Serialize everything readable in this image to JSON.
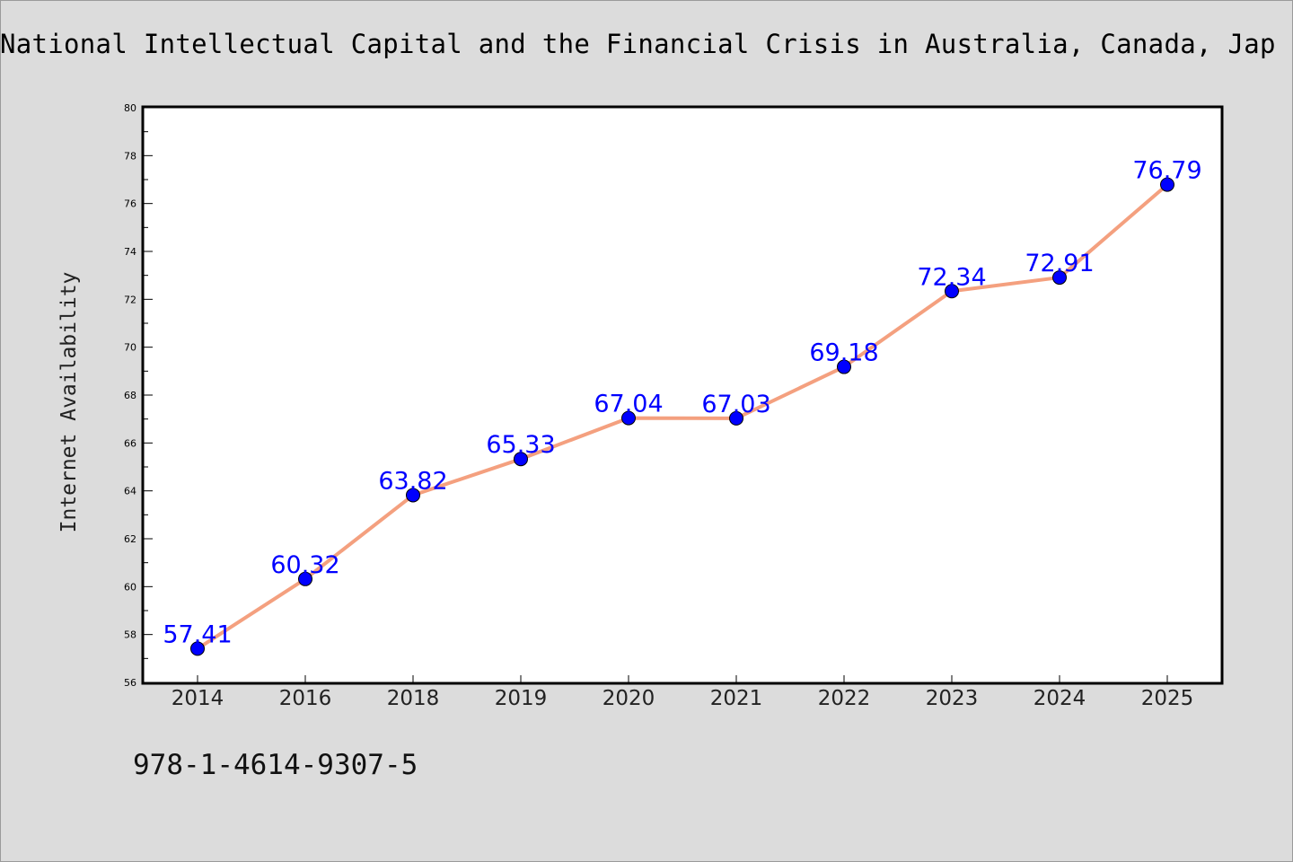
{
  "chart_data": {
    "type": "line",
    "title": "National Intellectual Capital and the Financial Crisis in Australia, Canada, Jap",
    "xlabel": "",
    "ylabel": "Internet Availability",
    "x": [
      "2014",
      "2016",
      "2018",
      "2019",
      "2020",
      "2021",
      "2022",
      "2023",
      "2024",
      "2025"
    ],
    "series": [
      {
        "values": [
          57.41,
          60.32,
          63.82,
          65.33,
          67.04,
          67.03,
          69.18,
          72.34,
          72.91,
          76.79
        ],
        "line_color": "#f4a07f",
        "marker_color": "#0000ff",
        "label_color": "#0000ff"
      }
    ],
    "ylim": [
      56,
      80
    ],
    "yticks": [
      56,
      58,
      60,
      62,
      64,
      66,
      68,
      70,
      72,
      74,
      76,
      78,
      80
    ],
    "grid": false,
    "data_labels": true
  },
  "footer_text": "978-1-4614-9307-5",
  "colors": {
    "background": "#dcdcdc",
    "plot_background": "#ffffff",
    "axes": "#000000"
  }
}
